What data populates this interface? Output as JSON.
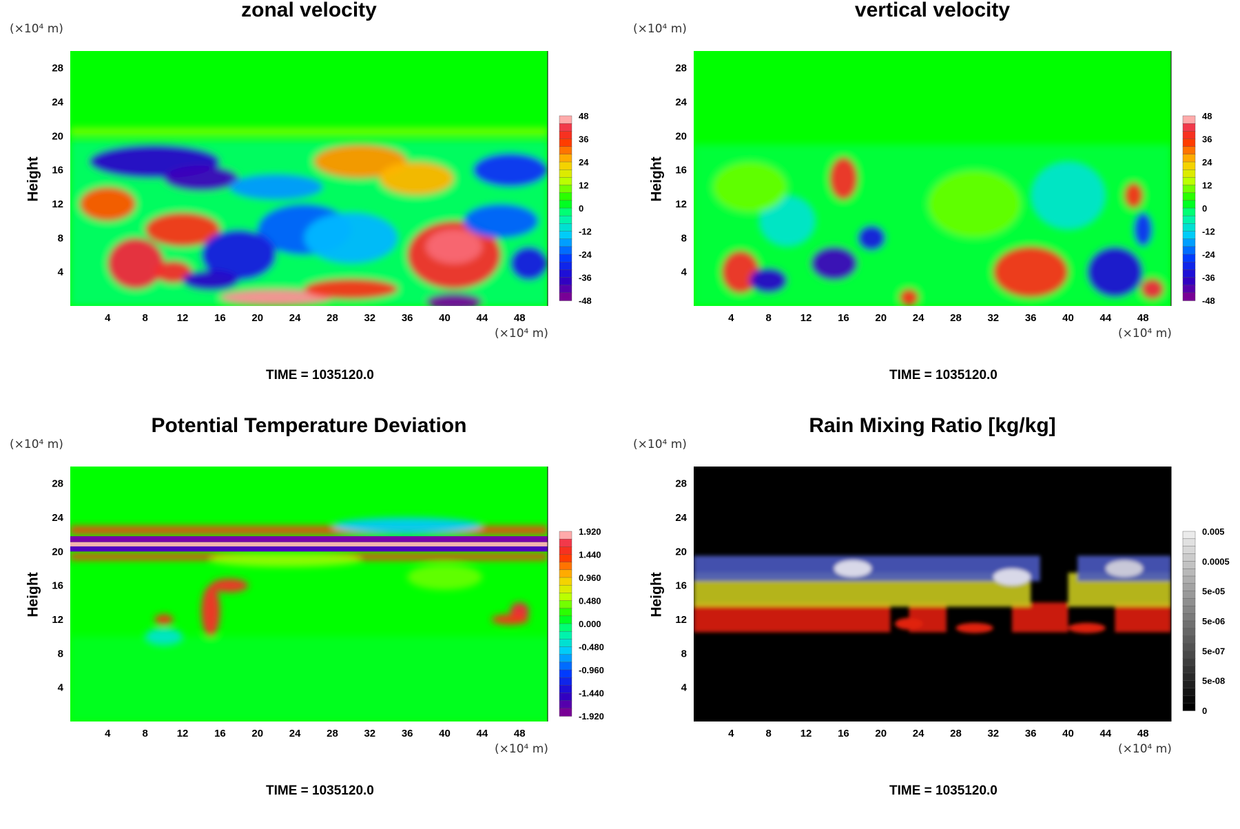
{
  "chart_data": [
    {
      "type": "heatmap",
      "title": "zonal velocity",
      "ylabel": "Height",
      "y_unit": "(×10⁴ m)",
      "x_unit": "(×10⁴ m)",
      "x_ticks": [
        "4",
        "8",
        "12",
        "16",
        "20",
        "24",
        "28",
        "32",
        "36",
        "40",
        "44",
        "48"
      ],
      "y_ticks": [
        "4",
        "8",
        "12",
        "16",
        "20",
        "24",
        "28"
      ],
      "xlim": [
        0,
        51
      ],
      "ylim": [
        0,
        30
      ],
      "colorbar": [
        "48",
        "36",
        "24",
        "12",
        "0",
        "-12",
        "-24",
        "-36",
        "-48"
      ],
      "colorbar_scheme": "rainbow",
      "time_label": "TIME = 1035120.0"
    },
    {
      "type": "heatmap",
      "title": "vertical velocity",
      "ylabel": "Height",
      "y_unit": "(×10⁴ m)",
      "x_unit": "(×10⁴ m)",
      "x_ticks": [
        "4",
        "8",
        "12",
        "16",
        "20",
        "24",
        "28",
        "32",
        "36",
        "40",
        "44",
        "48"
      ],
      "y_ticks": [
        "4",
        "8",
        "12",
        "16",
        "20",
        "24",
        "28"
      ],
      "xlim": [
        0,
        51
      ],
      "ylim": [
        0,
        30
      ],
      "colorbar": [
        "48",
        "36",
        "24",
        "12",
        "0",
        "-12",
        "-24",
        "-36",
        "-48"
      ],
      "colorbar_scheme": "rainbow",
      "time_label": "TIME = 1035120.0"
    },
    {
      "type": "heatmap",
      "title": "Potential Temperature Deviation",
      "ylabel": "Height",
      "y_unit": "(×10⁴ m)",
      "x_unit": "(×10⁴ m)",
      "x_ticks": [
        "4",
        "8",
        "12",
        "16",
        "20",
        "24",
        "28",
        "32",
        "36",
        "40",
        "44",
        "48"
      ],
      "y_ticks": [
        "4",
        "8",
        "12",
        "16",
        "20",
        "24",
        "28"
      ],
      "xlim": [
        0,
        51
      ],
      "ylim": [
        0,
        30
      ],
      "colorbar": [
        "1.920",
        "1.440",
        "0.960",
        "0.480",
        "0.000",
        "-0.480",
        "-0.960",
        "-1.440",
        "-1.920"
      ],
      "colorbar_scheme": "rainbow",
      "time_label": "TIME = 1035120.0"
    },
    {
      "type": "heatmap",
      "title": "Rain Mixing Ratio [kg/kg]",
      "ylabel": "Height",
      "y_unit": "(×10⁴ m)",
      "x_unit": "(×10⁴ m)",
      "x_ticks": [
        "4",
        "8",
        "12",
        "16",
        "20",
        "24",
        "28",
        "32",
        "36",
        "40",
        "44",
        "48"
      ],
      "y_ticks": [
        "4",
        "8",
        "12",
        "16",
        "20",
        "24",
        "28"
      ],
      "xlim": [
        0,
        51
      ],
      "ylim": [
        0,
        30
      ],
      "colorbar": [
        "0.005",
        "0.0005",
        "5e-05",
        "5e-06",
        "5e-07",
        "5e-08",
        "0"
      ],
      "colorbar_scheme": "grayscale",
      "time_label": "TIME = 1035120.0"
    }
  ],
  "colors": {
    "background_field": "#00ff00",
    "rain_background": "#000000"
  }
}
